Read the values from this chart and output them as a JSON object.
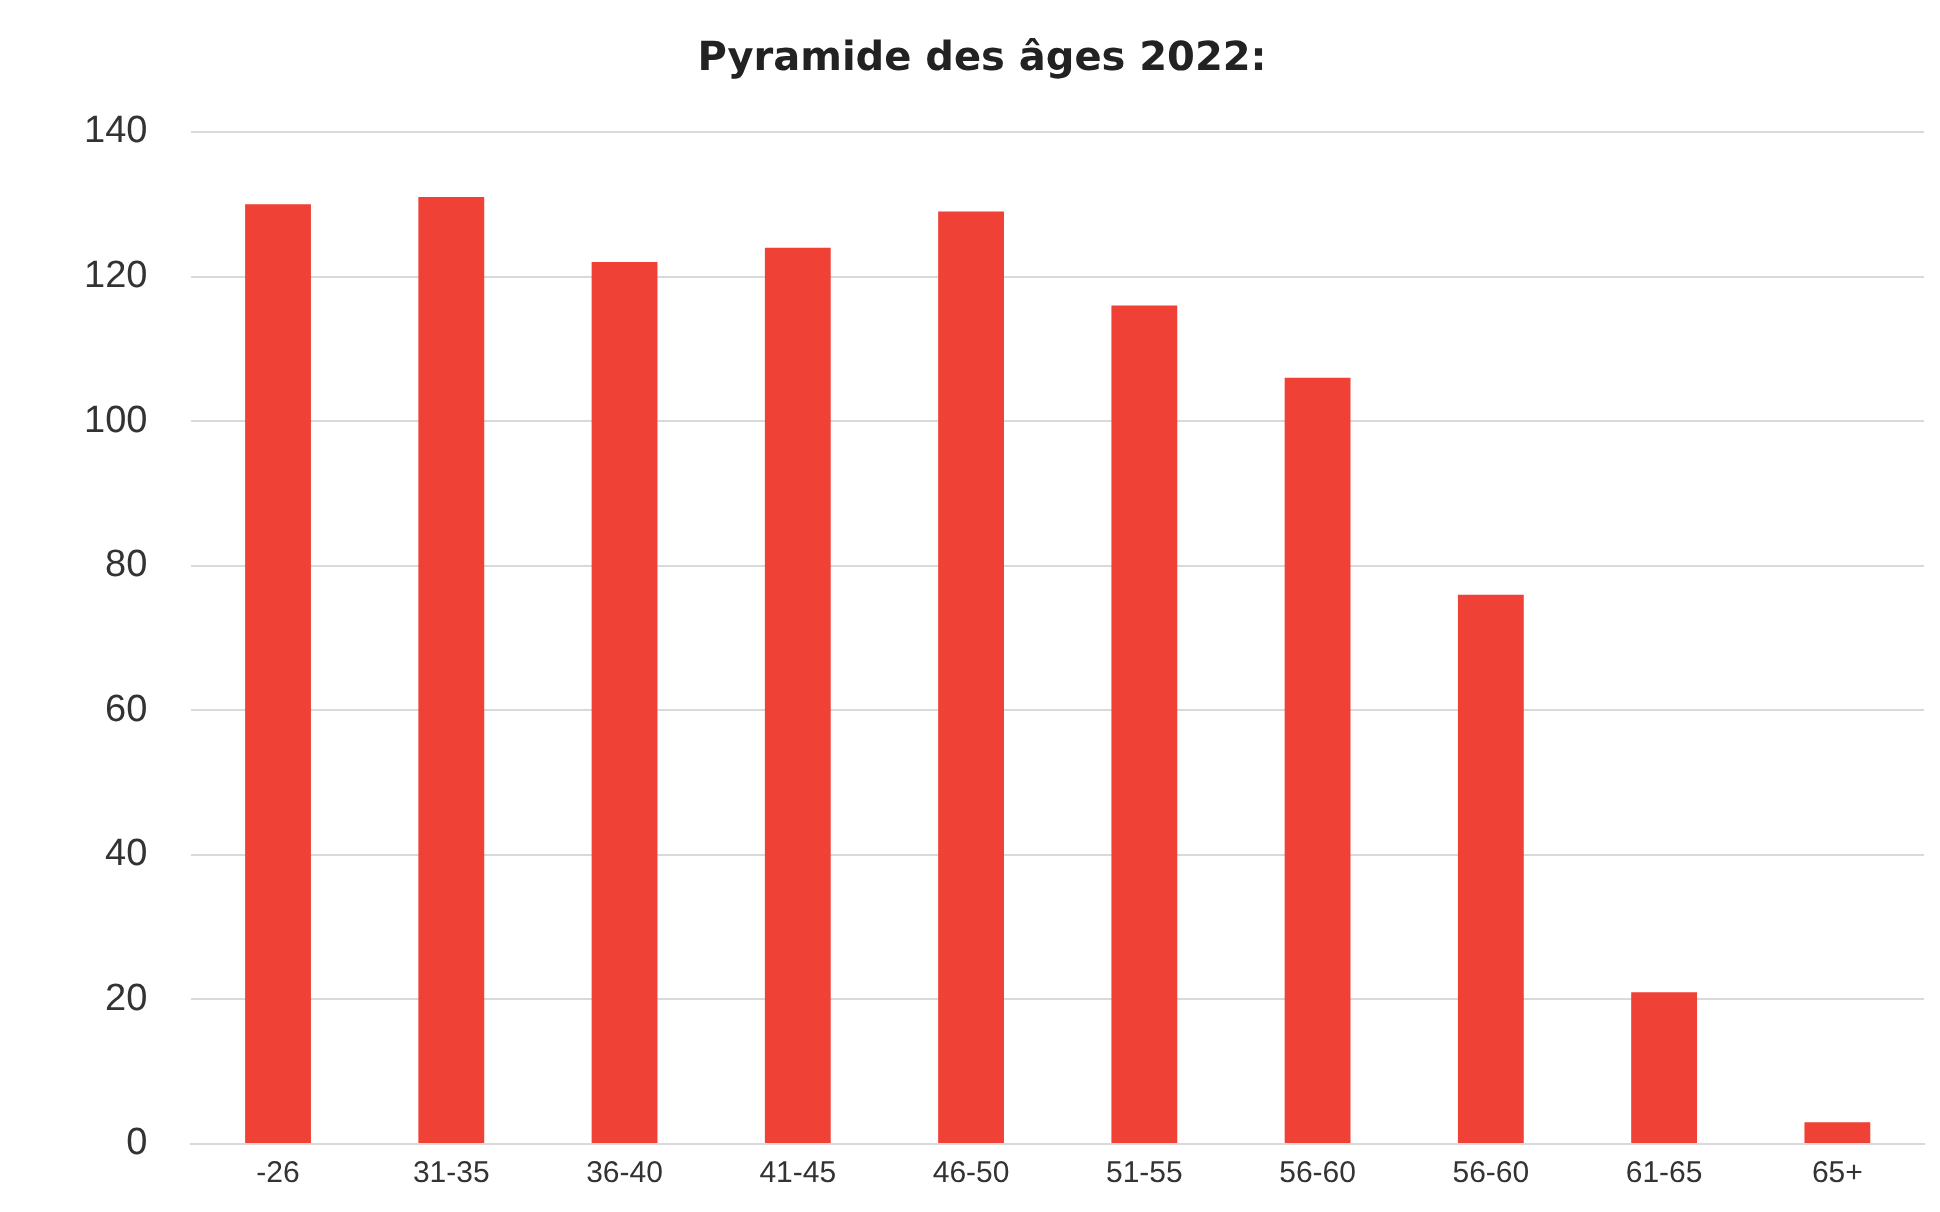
{
  "chart_data": {
    "type": "bar",
    "title": "Pyramide des âges 2022:",
    "categories": [
      "-26",
      "31-35",
      "36-40",
      "41-45",
      "46-50",
      "51-55",
      "56-60",
      "56-60",
      "61-65",
      "65+"
    ],
    "values": [
      130,
      131,
      122,
      124,
      129,
      116,
      106,
      76,
      21,
      3
    ],
    "color": "#ef4136",
    "ylim": [
      0,
      140
    ],
    "yticks": [
      0,
      20,
      40,
      60,
      80,
      100,
      120,
      140
    ],
    "grid": "y"
  }
}
